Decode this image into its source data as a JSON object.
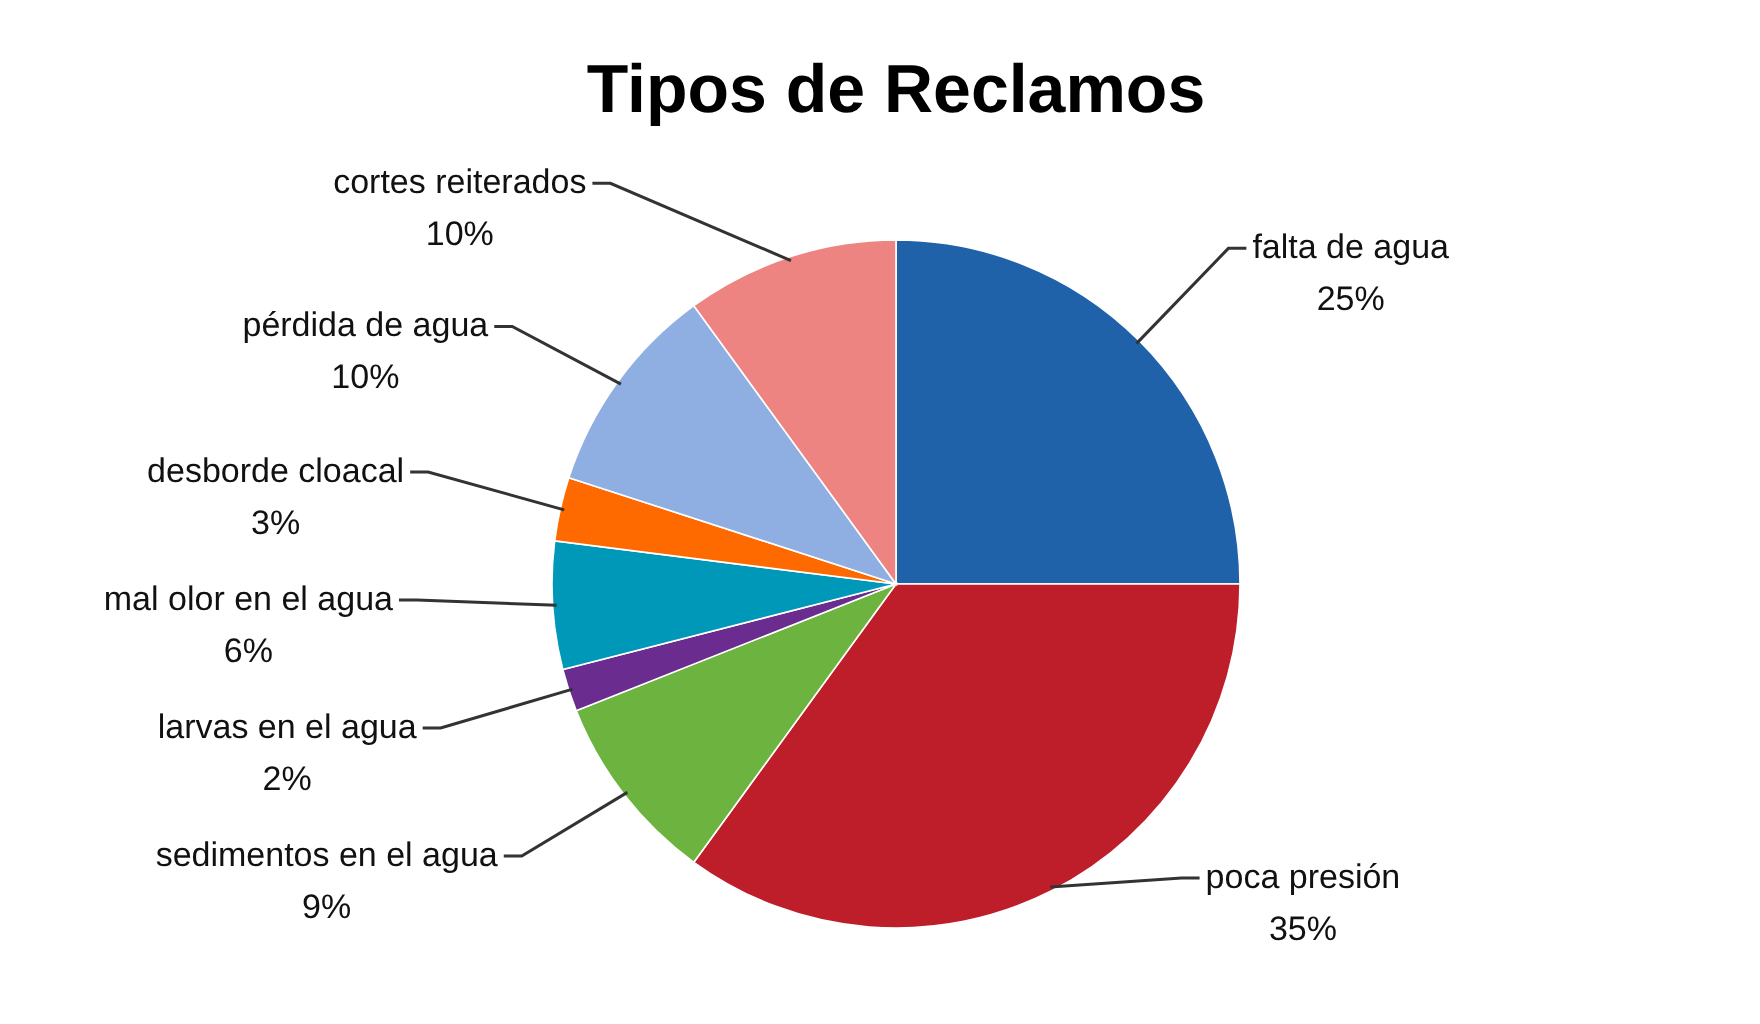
{
  "chart_data": {
    "type": "pie",
    "title": "Tipos de Reclamos",
    "categories": [
      "falta de agua",
      "poca presión",
      "sedimentos en el agua",
      "larvas en el agua",
      "mal olor en el agua",
      "desborde cloacal",
      "pérdida de agua",
      "cortes reiterados"
    ],
    "values": [
      25,
      35,
      9,
      2,
      6,
      3,
      10,
      10
    ],
    "value_labels": [
      "25%",
      "35%",
      "9%",
      "2%",
      "6%",
      "3%",
      "10%",
      "10%"
    ],
    "colors": [
      "#1f62aa",
      "#be1e2a",
      "#6db33f",
      "#6a2c8e",
      "#0098b8",
      "#ff6a00",
      "#8fafe2",
      "#ee8482"
    ]
  }
}
